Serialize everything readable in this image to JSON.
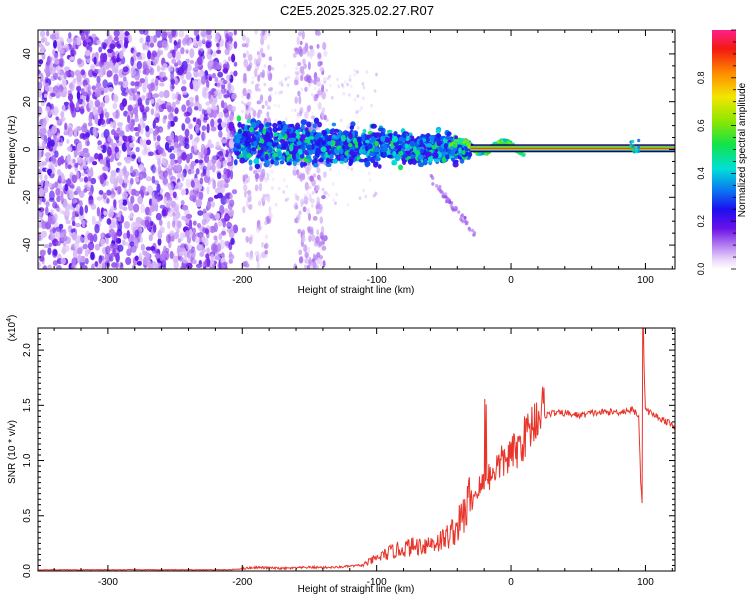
{
  "title": "C2E5.2025.325.02.27.R07",
  "chart_data": [
    {
      "type": "heatmap",
      "name": "spectrogram",
      "xlabel": "Height of straight line (km)",
      "ylabel": "Frequency (Hz)",
      "xlim": [
        -352,
        122
      ],
      "ylim": [
        -50,
        50
      ],
      "xticks": [
        -300,
        -200,
        -100,
        0,
        100
      ],
      "yticks": [
        -40,
        -20,
        0,
        20,
        40
      ],
      "colorbar": {
        "label": "Normalized spectral amplitude",
        "range": [
          0,
          1
        ],
        "ticks": [
          0.0,
          0.2,
          0.4,
          0.6,
          0.8
        ],
        "tick_labels": [
          "0.0",
          "0.2",
          "0.4",
          "0.6",
          "0.8"
        ]
      },
      "regions": [
        {
          "desc": "broadband noise",
          "x_range": [
            -352,
            -205
          ],
          "freq_range": [
            -50,
            50
          ],
          "amplitude": 0.1
        },
        {
          "desc": "sparse noise streaks",
          "x_range": [
            -200,
            -140
          ],
          "freq_range": [
            -50,
            50
          ],
          "amplitude": 0.05
        },
        {
          "desc": "spread echo",
          "x_range": [
            -205,
            -30
          ],
          "freq_range": [
            -8,
            14
          ],
          "amplitude": 0.35
        },
        {
          "desc": "sharp echo line",
          "x_range": [
            -30,
            122
          ],
          "freq_center": 0.5,
          "amplitude": 0.95
        }
      ]
    },
    {
      "type": "line",
      "name": "snr",
      "xlabel": "Height of straight line (km)",
      "ylabel": "SNR (10 * v/v)",
      "scale_label": "(x10",
      "scale_exp": "4",
      "scale_close": ")",
      "xlim": [
        -352,
        122
      ],
      "ylim": [
        0,
        2.2
      ],
      "xticks": [
        -300,
        -200,
        -100,
        0,
        100
      ],
      "yticks": [
        0.0,
        0.5,
        1.0,
        1.5,
        2.0
      ],
      "ytick_labels": [
        "0.0",
        "0.5",
        "1.0",
        "1.5",
        "2.0"
      ],
      "series": [
        {
          "name": "SNR",
          "color": "#e8352b",
          "x": [
            -352,
            -250,
            -210,
            -190,
            -170,
            -150,
            -130,
            -110,
            -100,
            -90,
            -80,
            -70,
            -60,
            -50,
            -40,
            -35,
            -30,
            -25,
            -20,
            -15,
            -10,
            -5,
            0,
            5,
            10,
            15,
            20,
            25,
            30,
            40,
            50,
            60,
            70,
            80,
            90,
            95,
            97,
            98,
            100,
            110,
            122
          ],
          "values": [
            0.01,
            0.01,
            0.01,
            0.03,
            0.02,
            0.03,
            0.03,
            0.05,
            0.1,
            0.15,
            0.18,
            0.2,
            0.22,
            0.25,
            0.35,
            0.45,
            0.6,
            0.7,
            0.75,
            0.85,
            0.9,
            0.95,
            1.0,
            1.05,
            1.15,
            1.25,
            1.35,
            1.4,
            1.42,
            1.42,
            1.4,
            1.42,
            1.43,
            1.43,
            1.45,
            1.4,
            0.6,
            2.2,
            1.45,
            1.38,
            1.3
          ]
        }
      ]
    }
  ]
}
